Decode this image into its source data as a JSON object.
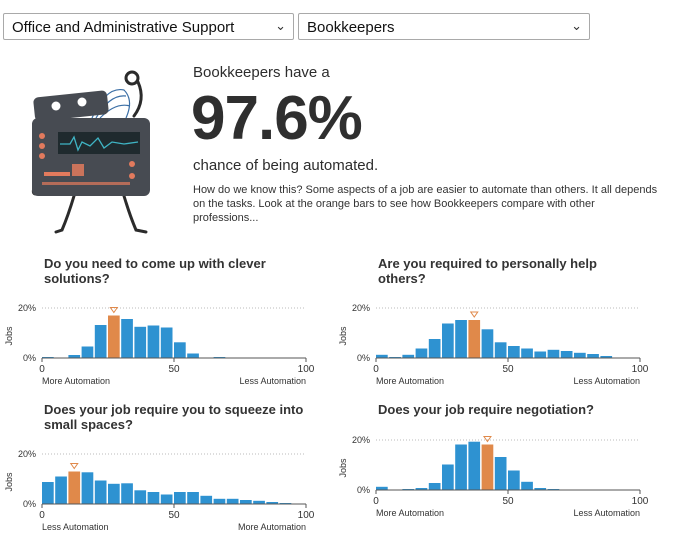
{
  "occupation_group": {
    "value": "Office and Administrative Support",
    "icon": "chevron-down-icon"
  },
  "occupation": {
    "value": "Bookkeepers",
    "icon": "chevron-down-icon"
  },
  "headline": {
    "lead": "Bookkeepers have a",
    "percent": "97.6%",
    "tail": "chance of being automated.",
    "explanation": "How do we know this? Some aspects of a job are easier to automate than others. It all depends on the tasks. Look at the orange bars to see how Bookkeepers compare with other professions..."
  },
  "colors": {
    "bar": "#2e92d1",
    "highlight": "#e0894a",
    "axis": "#555555"
  },
  "chart_data": [
    {
      "type": "bar",
      "title": "Do you need to come up with clever solutions?",
      "ylabel": "Jobs",
      "yticks": [
        "20%",
        "0%"
      ],
      "ylim": [
        0,
        20
      ],
      "xticks": [
        "0",
        "50",
        "100"
      ],
      "x_left_label": "More Automation",
      "x_right_label": "Less Automation",
      "values": [
        0.4,
        0,
        1.2,
        4.6,
        13.2,
        17,
        15.6,
        12.5,
        13,
        12.2,
        6.3,
        1.8,
        0,
        0.4,
        0,
        0,
        0,
        0,
        0,
        0
      ],
      "highlight_index": 5
    },
    {
      "type": "bar",
      "title": "Are you required to personally help others?",
      "ylabel": "Jobs",
      "yticks": [
        "20%",
        "0%"
      ],
      "ylim": [
        0,
        20
      ],
      "xticks": [
        "0",
        "50",
        "100"
      ],
      "x_left_label": "More Automation",
      "x_right_label": "Less Automation",
      "values": [
        1.3,
        0.4,
        1.3,
        3.8,
        7.6,
        13.8,
        15.2,
        15.2,
        11.5,
        6.3,
        4.8,
        3.8,
        2.6,
        3.3,
        2.8,
        2.1,
        1.6,
        0.8,
        0,
        0
      ],
      "highlight_index": 7
    },
    {
      "type": "bar",
      "title": "Does your job require you to squeeze into small spaces?",
      "ylabel": "Jobs",
      "yticks": [
        "20%",
        "0%"
      ],
      "ylim": [
        0,
        20
      ],
      "xticks": [
        "0",
        "50",
        "100"
      ],
      "x_left_label": "Less Automation",
      "x_right_label": "More Automation",
      "values": [
        8.8,
        11,
        13,
        12.7,
        9.4,
        8.1,
        8.3,
        5.5,
        4.8,
        3.8,
        4.8,
        4.8,
        3.3,
        2.1,
        2.1,
        1.6,
        1.3,
        0.8,
        0.4,
        0
      ],
      "highlight_index": 2
    },
    {
      "type": "bar",
      "title": "Does your job require negotiation?",
      "ylabel": "Jobs",
      "yticks": [
        "20%",
        "0%"
      ],
      "ylim": [
        0,
        20
      ],
      "xticks": [
        "0",
        "50",
        "100"
      ],
      "x_left_label": "More Automation",
      "x_right_label": "Less Automation",
      "values": [
        1.3,
        0,
        0.4,
        0.8,
        2.8,
        10.2,
        18.2,
        19.3,
        18.2,
        13.2,
        7.8,
        3.3,
        0.8,
        0.4,
        0,
        0,
        0,
        0,
        0,
        0
      ],
      "highlight_index": 8
    }
  ]
}
